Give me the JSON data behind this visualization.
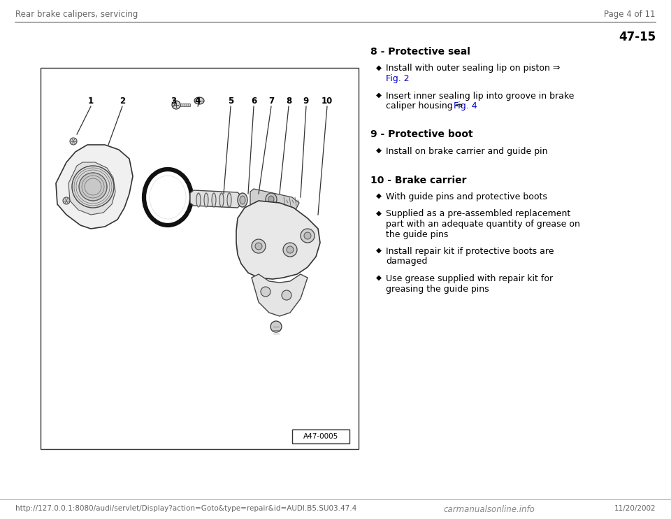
{
  "background_color": "#ffffff",
  "header_left": "Rear brake calipers, servicing",
  "header_right": "Page 4 of 11",
  "section_number": "47-15",
  "footer_url": "http://127.0.0.1:8080/audi/servlet/Display?action=Goto&type=repair&id=AUDI.B5.SU03.47.4",
  "footer_date": "11/20/2002",
  "footer_logo": "carmanualsonline.info",
  "diagram_label": "A47-0005",
  "items": [
    {
      "number": "8",
      "title": "Protective seal",
      "bullets": [
        {
          "lines": [
            "Install with outer sealing lip on piston ⇒",
            "Fig. 2"
          ],
          "link_line": 1,
          "link_text": "Fig. 2"
        },
        {
          "lines": [
            "Insert inner sealing lip into groove in brake",
            "caliper housing ⇒ Fig. 4"
          ],
          "link_line": 1,
          "link_text": "Fig. 4"
        }
      ]
    },
    {
      "number": "9",
      "title": "Protective boot",
      "bullets": [
        {
          "lines": [
            "Install on brake carrier and guide pin"
          ],
          "link_line": -1
        }
      ]
    },
    {
      "number": "10",
      "title": "Brake carrier",
      "bullets": [
        {
          "lines": [
            "With guide pins and protective boots"
          ],
          "link_line": -1
        },
        {
          "lines": [
            "Supplied as a pre-assembled replacement",
            "part with an adequate quantity of grease on",
            "the guide pins"
          ],
          "link_line": -1
        },
        {
          "lines": [
            "Install repair kit if protective boots are",
            "damaged"
          ],
          "link_line": -1
        },
        {
          "lines": [
            "Use grease supplied with repair kit for",
            "greasing the guide pins"
          ],
          "link_line": -1
        }
      ]
    }
  ],
  "text_color": "#000000",
  "link_color": "#0000cc",
  "header_color": "#666666",
  "line_color": "#999999",
  "diagram_box_color": "#000000",
  "font_size_header": 8.5,
  "font_size_section": 12,
  "font_size_title": 10,
  "font_size_body": 9,
  "font_size_footer": 7.5
}
